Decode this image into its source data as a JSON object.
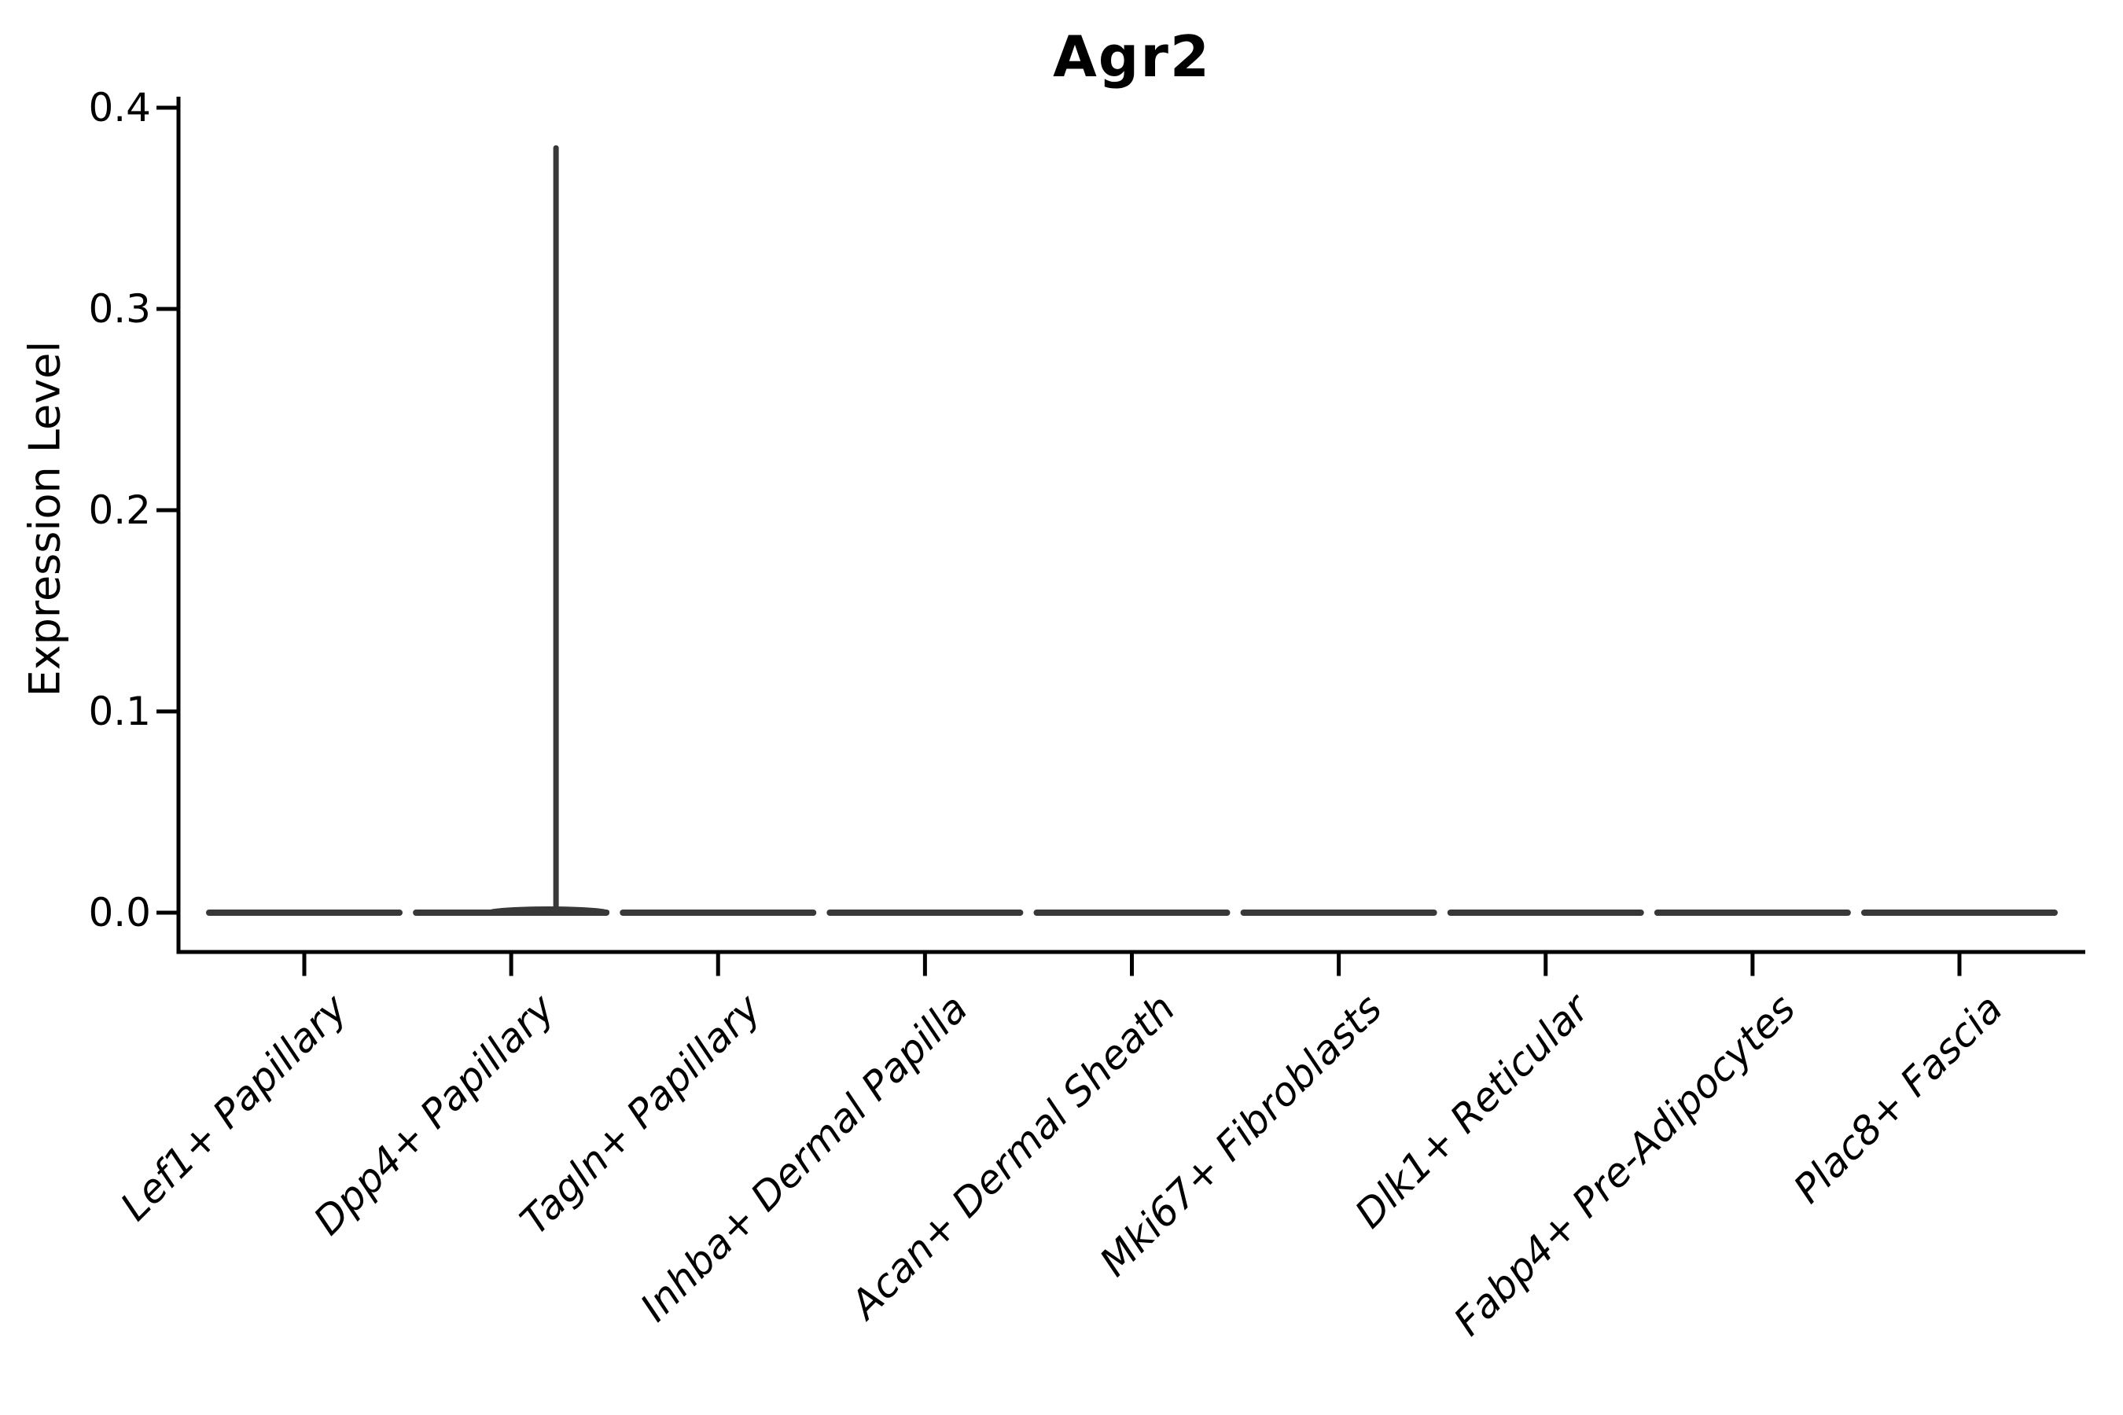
{
  "chart_data": {
    "type": "violin",
    "title": "Agr2",
    "xlabel": "",
    "ylabel": "Expression Level",
    "categories": [
      "Lef1+ Papillary",
      "Dpp4+ Papillary",
      "Tagln+ Papillary",
      "Inhba+ Dermal Papilla",
      "Acan+ Dermal Sheath",
      "Mki67+ Fibroblasts",
      "Dlk1+ Reticular",
      "Fabp4+ Pre-Adipocytes",
      "Plac8+ Fascia"
    ],
    "violins": [
      {
        "category": "Lef1+ Papillary",
        "min": 0.0,
        "max": 0.0
      },
      {
        "category": "Dpp4+ Papillary",
        "min": 0.0,
        "max": 0.38
      },
      {
        "category": "Tagln+ Papillary",
        "min": 0.0,
        "max": 0.0
      },
      {
        "category": "Inhba+ Dermal Papilla",
        "min": 0.0,
        "max": 0.0
      },
      {
        "category": "Acan+ Dermal Sheath",
        "min": 0.0,
        "max": 0.0
      },
      {
        "category": "Mki67+ Fibroblasts",
        "min": 0.0,
        "max": 0.0
      },
      {
        "category": "Dlk1+ Reticular",
        "min": 0.0,
        "max": 0.0
      },
      {
        "category": "Fabp4+ Pre-Adipocytes",
        "min": 0.0,
        "max": 0.0
      },
      {
        "category": "Plac8+ Fascia",
        "min": 0.0,
        "max": 0.0
      }
    ],
    "yticks": [
      0.0,
      0.1,
      0.2,
      0.3,
      0.4
    ],
    "ytick_labels": [
      "0.0",
      "0.1",
      "0.2",
      "0.3",
      "0.4"
    ],
    "ylim": [
      -0.02,
      0.405
    ],
    "x_tick_rotation_deg": 45,
    "grid": false,
    "legend": "none",
    "colors": {
      "violin_outline": "#383838",
      "axis": "#000000",
      "text": "#000000",
      "background": "#ffffff"
    }
  }
}
